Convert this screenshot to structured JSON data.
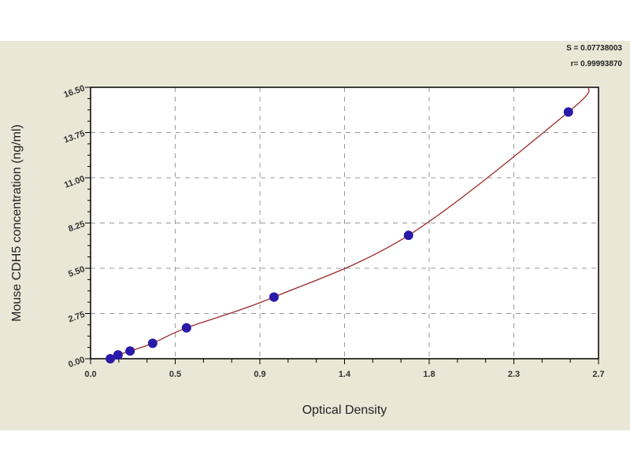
{
  "chart_data": {
    "type": "scatter",
    "title": "",
    "xlabel": "Optical Density",
    "ylabel": "Mouse CDH5 concentration (ng/ml)",
    "xlim": [
      0,
      2.7
    ],
    "ylim": [
      0,
      16.5
    ],
    "x_tick_values": [
      0,
      0.45,
      0.9,
      1.35,
      1.8,
      2.25,
      2.7
    ],
    "x_tick_labels": [
      "0.0",
      "0.5",
      "0.9",
      "1.4",
      "1.8",
      "2.3",
      "2.7"
    ],
    "y_tick_values": [
      0,
      2.75,
      5.5,
      8.25,
      11,
      13.75,
      16.5
    ],
    "y_tick_labels": [
      "0.00",
      "2.75",
      "5.50",
      "8.25",
      "11.00",
      "13.75",
      "16.50"
    ],
    "grid": true,
    "series": [
      {
        "points": [
          {
            "x": 0.105,
            "y": 0
          },
          {
            "x": 0.146,
            "y": 0.234
          },
          {
            "x": 0.21,
            "y": 0.469
          },
          {
            "x": 0.33,
            "y": 0.938
          },
          {
            "x": 0.51,
            "y": 1.875
          },
          {
            "x": 0.975,
            "y": 3.75
          },
          {
            "x": 1.69,
            "y": 7.5
          },
          {
            "x": 2.54,
            "y": 15
          }
        ],
        "marker_color": "#2a1aa8",
        "fit_color": "#9b2a2a"
      }
    ],
    "fit_endpoint": {
      "x": 2.65,
      "y": 16.5
    },
    "annotations": {
      "s": "S = 0.07738003",
      "r": "r= 0.99993870"
    }
  },
  "colors": {
    "background": "#ebe7d7",
    "plot": "#ffffff",
    "grid": "#999999"
  }
}
